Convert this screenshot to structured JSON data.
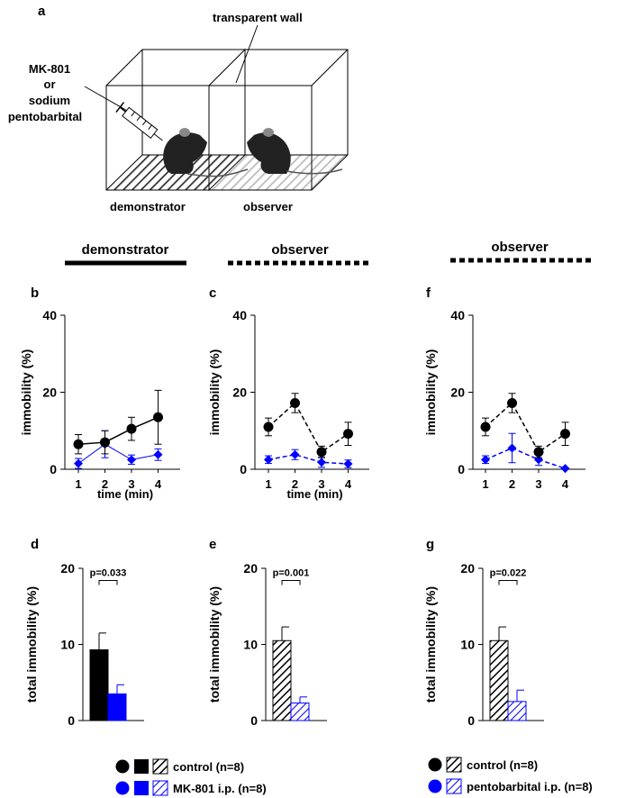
{
  "panel_a": {
    "letter": "a",
    "wall_label": "transparent wall",
    "drug_label": [
      "MK-801",
      "or",
      "sodium",
      "pentobarbital"
    ],
    "demonstrator_label": "demonstrator",
    "observer_label": "observer"
  },
  "headers": {
    "col1": "demonstrator",
    "col2": "observer",
    "col3": "observer"
  },
  "colors": {
    "control": "#000000",
    "treated": "#0000ff"
  },
  "chart_data": [
    {
      "id": "b",
      "type": "line",
      "letter": "b",
      "ylabel": "immobility (%)",
      "xlabel": "time (min)",
      "ylim": [
        0,
        40
      ],
      "yticks": [
        0,
        20,
        40
      ],
      "x": [
        1,
        2,
        3,
        4
      ],
      "xticklabels": [
        "1",
        "2",
        "3",
        "4"
      ],
      "series": [
        {
          "role": "control",
          "line_style": "solid",
          "color": "#000000",
          "marker": "circle",
          "values": [
            6.5,
            7,
            10.5,
            13.5
          ],
          "errors": [
            2.5,
            3,
            3,
            7
          ]
        },
        {
          "role": "treated",
          "line_style": "thin-solid",
          "color": "#0000ff",
          "marker": "diamond",
          "values": [
            1.5,
            6.5,
            2.5,
            3.8
          ],
          "errors": [
            1.3,
            3.5,
            1.2,
            1.5
          ]
        }
      ]
    },
    {
      "id": "c",
      "type": "line",
      "letter": "c",
      "ylabel": "immobility (%)",
      "xlabel": "time (min)",
      "ylim": [
        0,
        40
      ],
      "yticks": [
        0,
        20,
        40
      ],
      "x": [
        1,
        2,
        3,
        4
      ],
      "xticklabels": [
        "1",
        "2",
        "3",
        "4"
      ],
      "series": [
        {
          "role": "control",
          "line_style": "dashed",
          "color": "#000000",
          "marker": "circle",
          "values": [
            11,
            17.2,
            4.5,
            9.2
          ],
          "errors": [
            2.3,
            2.5,
            1.5,
            3
          ]
        },
        {
          "role": "treated",
          "line_style": "dashed",
          "color": "#0000ff",
          "marker": "diamond",
          "values": [
            2.5,
            3.8,
            1.8,
            1.4
          ],
          "errors": [
            1,
            1.3,
            1.3,
            1
          ]
        }
      ]
    },
    {
      "id": "f",
      "type": "line",
      "letter": "f",
      "ylabel": "immobility (%)",
      "xlabel": "",
      "ylim": [
        0,
        40
      ],
      "yticks": [
        0,
        20,
        40
      ],
      "x": [
        1,
        2,
        3,
        4
      ],
      "xticklabels": [
        "1",
        "2",
        "3",
        "4"
      ],
      "series": [
        {
          "role": "control",
          "line_style": "dashed",
          "color": "#000000",
          "marker": "circle",
          "values": [
            11,
            17.2,
            4.5,
            9.2
          ],
          "errors": [
            2.3,
            2.5,
            1.5,
            3
          ]
        },
        {
          "role": "treated",
          "line_style": "dashed",
          "color": "#0000ff",
          "marker": "diamond",
          "values": [
            2.5,
            5.5,
            2.5,
            0.2
          ],
          "errors": [
            1,
            3.8,
            1.5,
            0.2
          ]
        }
      ]
    },
    {
      "id": "d",
      "type": "bar",
      "letter": "d",
      "ylabel": "total immobility (%)",
      "ylim": [
        0,
        20
      ],
      "yticks": [
        0,
        10,
        20
      ],
      "pvalue": "p=0.033",
      "bars": [
        {
          "role": "control",
          "value": 9.3,
          "error": 2.2,
          "fill": "solid",
          "color": "#000000"
        },
        {
          "role": "treated",
          "value": 3.5,
          "error": 1.2,
          "fill": "solid",
          "color": "#0000ff"
        }
      ]
    },
    {
      "id": "e",
      "type": "bar",
      "letter": "e",
      "ylabel": "total immobility (%)",
      "ylim": [
        0,
        20
      ],
      "yticks": [
        0,
        10,
        20
      ],
      "pvalue": "p=0.001",
      "bars": [
        {
          "role": "control",
          "value": 10.5,
          "error": 1.8,
          "fill": "hatched",
          "color": "#000000"
        },
        {
          "role": "treated",
          "value": 2.3,
          "error": 0.8,
          "fill": "hatched",
          "color": "#0000ff"
        }
      ]
    },
    {
      "id": "g",
      "type": "bar",
      "letter": "g",
      "ylabel": "total immobility (%)",
      "ylim": [
        0,
        20
      ],
      "yticks": [
        0,
        10,
        20
      ],
      "pvalue": "p=0.022",
      "bars": [
        {
          "role": "control",
          "value": 10.5,
          "error": 1.8,
          "fill": "hatched",
          "color": "#000000"
        },
        {
          "role": "treated",
          "value": 2.5,
          "error": 1.5,
          "fill": "hatched",
          "color": "#0000ff"
        }
      ]
    }
  ],
  "legend_left": [
    {
      "label": "control (n=8)",
      "color": "#000000"
    },
    {
      "label": "MK-801 i.p. (n=8)",
      "color": "#0000ff"
    }
  ],
  "legend_right": [
    {
      "label": "control (n=8)",
      "color": "#000000"
    },
    {
      "label": "pentobarbital i.p. (n=8)",
      "color": "#0000ff"
    }
  ]
}
